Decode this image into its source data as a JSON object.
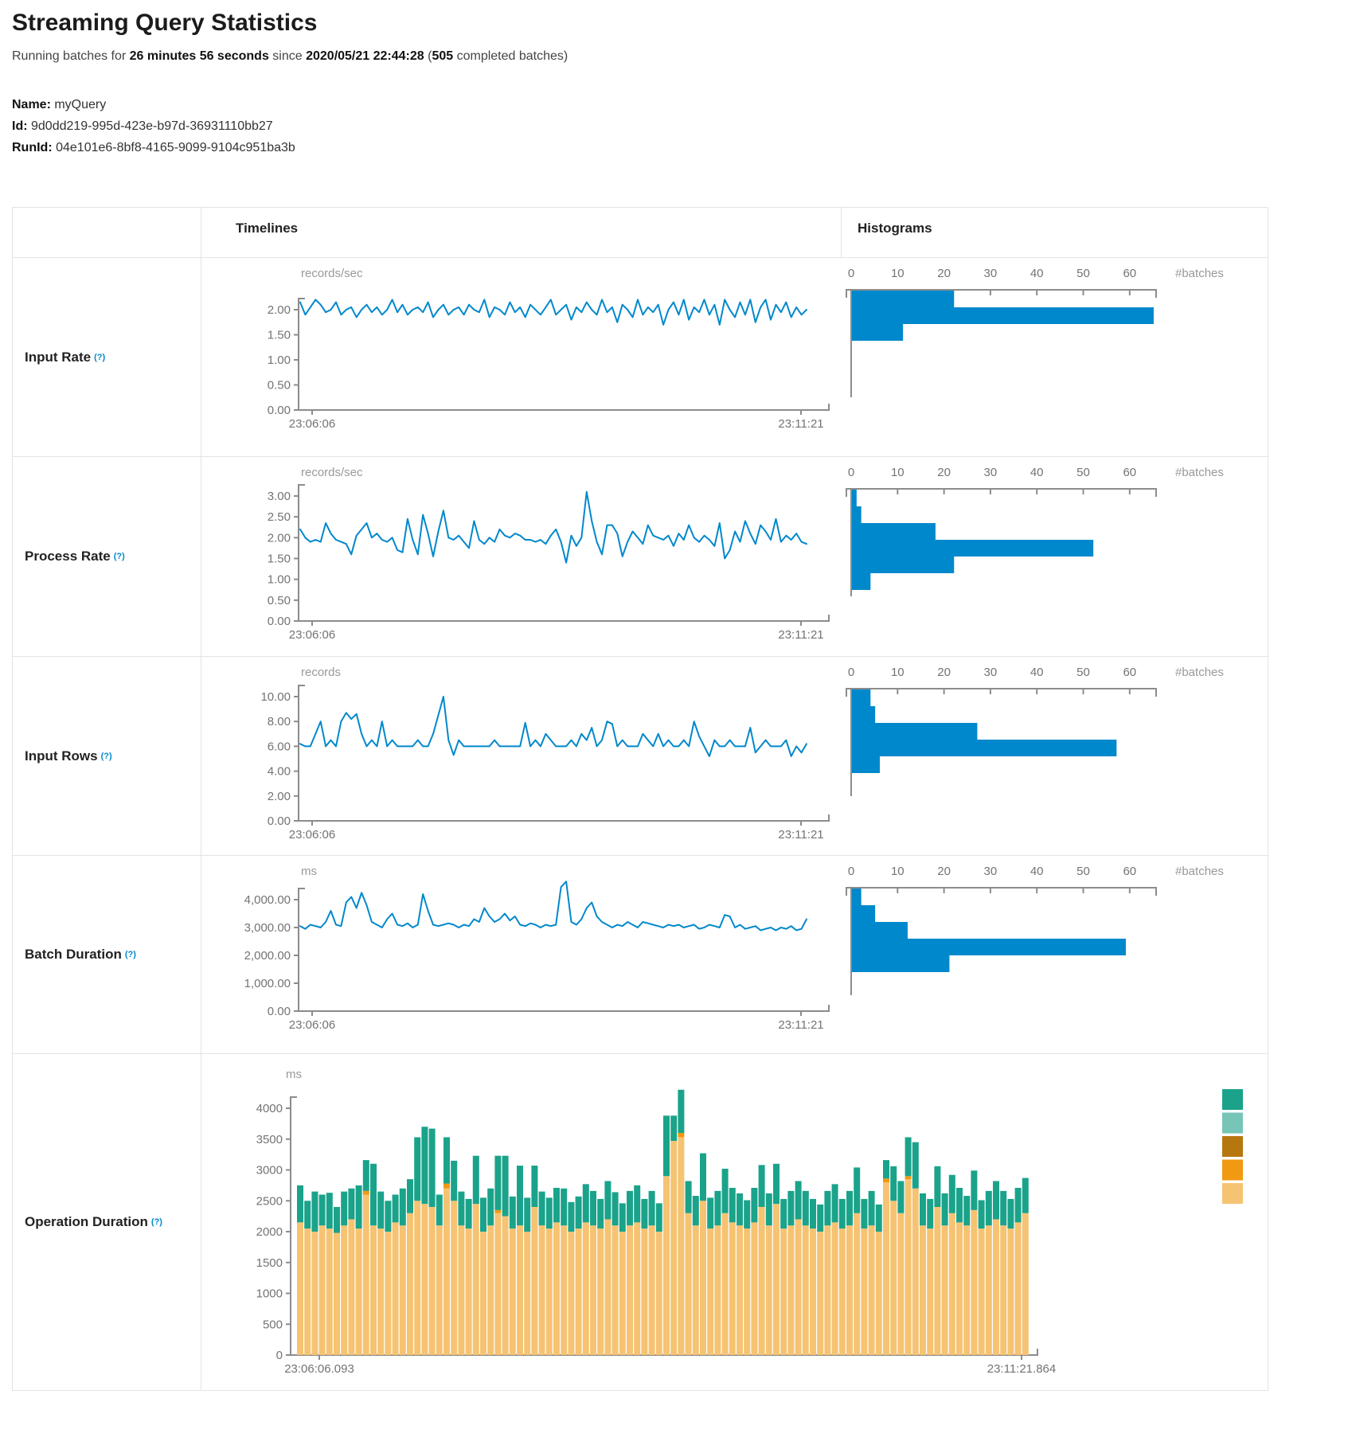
{
  "header": {
    "title": "Streaming Query Statistics",
    "running_prefix": "Running batches for ",
    "running_duration": "26 minutes 56 seconds",
    "running_since": " since ",
    "start_time": "2020/05/21 22:44:28",
    "paren_open": " (",
    "completed_batches": "505",
    "paren_close": " completed batches)"
  },
  "query_info": {
    "name_label": "Name:",
    "name_value": " myQuery",
    "id_label": "Id:",
    "id_value": " 9d0dd219-995d-423e-b97d-36931110bb27",
    "run_id_label": "RunId:",
    "run_id_value": " 04e101e6-8bf8-4165-9099-9104c951ba3b"
  },
  "table": {
    "timelines_header": "Timelines",
    "histograms_header": "Histograms",
    "rows": [
      {
        "label": "Input Rate",
        "help": "(?)"
      },
      {
        "label": "Process Rate",
        "help": "(?)"
      },
      {
        "label": "Input Rows",
        "help": "(?)"
      },
      {
        "label": "Batch Duration",
        "help": "(?)"
      },
      {
        "label": "Operation Duration",
        "help": "(?)"
      }
    ]
  },
  "colors": {
    "series_blue": "#0088CC",
    "axis_gray": "#8c8c8c",
    "tick_text": "#737373",
    "unit_text": "#999999"
  },
  "chart_data": [
    {
      "id": "input_rate_timeline",
      "type": "line",
      "unit": "records/sec",
      "x_start_label": "23:06:06",
      "x_end_label": "23:11:21",
      "ytick_values": [
        2,
        1.5,
        1,
        0.5,
        0
      ],
      "ytick_labels": [
        "2.00",
        "1.50",
        "1.00",
        "0.50",
        "0.00"
      ],
      "ylim": [
        0,
        2.3
      ],
      "values": [
        2.15,
        1.9,
        2.05,
        2.2,
        2.1,
        1.95,
        2.0,
        2.15,
        1.9,
        2.0,
        2.05,
        1.85,
        2.0,
        2.1,
        1.95,
        2.05,
        1.9,
        2.0,
        2.2,
        1.95,
        2.1,
        1.9,
        2.0,
        2.05,
        1.95,
        2.15,
        1.85,
        2.0,
        2.1,
        1.9,
        2.0,
        2.05,
        1.9,
        2.1,
        2.0,
        1.95,
        2.2,
        1.85,
        2.05,
        2.0,
        1.9,
        2.15,
        1.95,
        2.05,
        1.85,
        2.1,
        2.0,
        1.9,
        2.05,
        2.2,
        1.9,
        2.0,
        2.1,
        1.8,
        2.05,
        1.95,
        2.15,
        2.0,
        1.9,
        2.2,
        1.95,
        2.05,
        1.75,
        2.1,
        2.0,
        1.85,
        2.2,
        1.9,
        2.05,
        1.95,
        2.1,
        1.7,
        2.0,
        2.15,
        1.9,
        2.2,
        1.8,
        2.05,
        1.95,
        2.2,
        1.9,
        2.1,
        1.7,
        2.2,
        2.0,
        1.85,
        2.15,
        1.9,
        2.2,
        1.75,
        2.05,
        2.2,
        1.8,
        2.1,
        1.95,
        2.15,
        1.85,
        2.05,
        1.9,
        2.0
      ]
    },
    {
      "id": "input_rate_histogram",
      "type": "hbar",
      "side_label": "#batches",
      "xtick_values": [
        0,
        10,
        20,
        30,
        40,
        50,
        60
      ],
      "values": [
        22,
        65,
        11
      ]
    },
    {
      "id": "process_rate_timeline",
      "type": "line",
      "unit": "records/sec",
      "x_start_label": "23:06:06",
      "x_end_label": "23:11:21",
      "ytick_values": [
        3,
        2.5,
        2,
        1.5,
        1,
        0.5,
        0
      ],
      "ytick_labels": [
        "3.00",
        "2.50",
        "2.00",
        "1.50",
        "1.00",
        "0.50",
        "0.00"
      ],
      "ylim": [
        0,
        3.2
      ],
      "values": [
        2.2,
        2.0,
        1.9,
        1.95,
        1.9,
        2.35,
        2.1,
        1.95,
        1.9,
        1.85,
        1.6,
        2.05,
        2.2,
        2.35,
        2.0,
        2.1,
        1.95,
        1.9,
        2.0,
        1.7,
        1.65,
        2.45,
        1.95,
        1.6,
        2.55,
        2.1,
        1.55,
        2.15,
        2.65,
        2.0,
        1.95,
        2.05,
        1.9,
        1.75,
        2.4,
        1.95,
        1.85,
        2.0,
        1.9,
        2.2,
        2.05,
        2.0,
        2.1,
        2.05,
        1.95,
        1.95,
        1.9,
        1.95,
        1.85,
        2.05,
        2.2,
        1.9,
        1.4,
        2.05,
        1.8,
        2.0,
        3.1,
        2.4,
        1.9,
        1.6,
        2.3,
        2.3,
        2.1,
        1.55,
        1.9,
        2.15,
        2.0,
        1.85,
        2.3,
        2.05,
        2.0,
        1.95,
        2.05,
        1.8,
        2.1,
        1.95,
        2.3,
        2.0,
        1.9,
        2.05,
        1.95,
        1.8,
        2.35,
        1.5,
        1.7,
        2.15,
        1.9,
        2.4,
        2.1,
        1.85,
        2.3,
        2.15,
        1.95,
        2.45,
        1.9,
        2.05,
        1.95,
        2.1,
        1.9,
        1.85
      ]
    },
    {
      "id": "process_rate_histogram",
      "type": "hbar",
      "side_label": "#batches",
      "xtick_values": [
        0,
        10,
        20,
        30,
        40,
        50,
        60
      ],
      "values": [
        1,
        2,
        18,
        52,
        22,
        4
      ]
    },
    {
      "id": "input_rows_timeline",
      "type": "line",
      "unit": "records",
      "x_start_label": "23:06:06",
      "x_end_label": "23:11:21",
      "ytick_values": [
        10,
        8,
        6,
        4,
        2,
        0
      ],
      "ytick_labels": [
        "10.00",
        "8.00",
        "6.00",
        "4.00",
        "2.00",
        "0.00"
      ],
      "ylim": [
        0,
        10.5
      ],
      "values": [
        6.2,
        6,
        6,
        7,
        8,
        6,
        6.5,
        6,
        8,
        8.7,
        8.2,
        8.6,
        7,
        6,
        6.5,
        6,
        8,
        6,
        6.5,
        6,
        6,
        6,
        6,
        6.5,
        6,
        6,
        7,
        8.5,
        10,
        6.5,
        5.3,
        6.5,
        6,
        6,
        6,
        6,
        6,
        6,
        6.5,
        6,
        6,
        6,
        6,
        6,
        7.9,
        6,
        6.5,
        6,
        7,
        6.5,
        6,
        6,
        6,
        6.5,
        6,
        7,
        6.5,
        7.5,
        6,
        6.5,
        8,
        7.8,
        6,
        6.5,
        6,
        6,
        6,
        7,
        6.5,
        6,
        7,
        6,
        6.5,
        6,
        6,
        6.5,
        6,
        8,
        6.8,
        6,
        5.2,
        6.5,
        6,
        6,
        6.5,
        6,
        6,
        6,
        7.5,
        5.5,
        6,
        6.5,
        6,
        6,
        6,
        6.5,
        5.2,
        6,
        5.5,
        6.2
      ]
    },
    {
      "id": "input_rows_histogram",
      "type": "hbar",
      "side_label": "#batches",
      "xtick_values": [
        0,
        10,
        20,
        30,
        40,
        50,
        60
      ],
      "values": [
        4,
        5,
        27,
        57,
        6
      ]
    },
    {
      "id": "batch_duration_timeline",
      "type": "line",
      "unit": "ms",
      "x_start_label": "23:06:06",
      "x_end_label": "23:11:21",
      "ytick_values": [
        4000,
        3000,
        2000,
        1000,
        0
      ],
      "ytick_labels": [
        "4,000.00",
        "3,000.00",
        "2,000.00",
        "1,000.00",
        "0.00"
      ],
      "ylim": [
        0,
        5000
      ],
      "values": [
        3050,
        2950,
        3100,
        3050,
        3000,
        3200,
        3600,
        3100,
        3050,
        3900,
        4100,
        3700,
        4250,
        3800,
        3200,
        3100,
        3000,
        3300,
        3500,
        3100,
        3050,
        3150,
        3000,
        3100,
        4200,
        3600,
        3100,
        3050,
        3100,
        3150,
        3100,
        3000,
        3100,
        3050,
        3300,
        3200,
        3700,
        3400,
        3200,
        3300,
        3500,
        3250,
        3400,
        3100,
        3050,
        3150,
        3100,
        3000,
        3100,
        3050,
        3100,
        4450,
        4650,
        3200,
        3100,
        3300,
        3700,
        3900,
        3400,
        3200,
        3100,
        3000,
        3100,
        3050,
        3200,
        3100,
        3000,
        3200,
        3150,
        3100,
        3050,
        3000,
        3100,
        3050,
        3100,
        3000,
        3050,
        3100,
        2950,
        3000,
        3100,
        3050,
        3000,
        3450,
        3400,
        3000,
        3100,
        2950,
        3000,
        3050,
        2900,
        2950,
        3000,
        2900,
        3000,
        2950,
        3050,
        2900,
        2950,
        3300
      ]
    },
    {
      "id": "batch_duration_histogram",
      "type": "hbar",
      "side_label": "#batches",
      "xtick_values": [
        0,
        10,
        20,
        30,
        40,
        50,
        60
      ],
      "values": [
        2,
        5,
        12,
        59,
        21
      ]
    },
    {
      "id": "operation_duration",
      "type": "stacked_bar",
      "unit": "ms",
      "x_start_label": "23:06:06.093",
      "x_end_label": "23:11:21.864",
      "ytick_values": [
        4000,
        3500,
        3000,
        2500,
        2000,
        1500,
        1000,
        500,
        0
      ],
      "ytick_labels": [
        "4000",
        "3500",
        "3000",
        "2500",
        "2000",
        "1500",
        "1000",
        "500",
        "0"
      ],
      "ylim": [
        0,
        4400
      ],
      "legend": [
        {
          "name": "teal",
          "color": "#1AA38A"
        },
        {
          "name": "light-teal",
          "color": "#76C5B6"
        },
        {
          "name": "dark-gold",
          "color": "#B7770F"
        },
        {
          "name": "orange",
          "color": "#F09911"
        },
        {
          "name": "tan",
          "color": "#F6C372"
        }
      ],
      "series": [
        {
          "name": "bottom-tan",
          "color": "#F6C372",
          "values": [
            2150,
            2050,
            2000,
            2100,
            2050,
            1980,
            2100,
            2200,
            2050,
            2600,
            2100,
            2050,
            2000,
            2150,
            2100,
            2300,
            2500,
            2450,
            2400,
            2100,
            2700,
            2500,
            2100,
            2050,
            2450,
            2000,
            2100,
            2300,
            2250,
            2050,
            2100,
            2000,
            2400,
            2100,
            2050,
            2150,
            2100,
            2000,
            2050,
            2150,
            2100,
            2050,
            2200,
            2100,
            2000,
            2100,
            2150,
            2050,
            2100,
            2000,
            2900,
            3470,
            3530,
            2300,
            2100,
            2500,
            2050,
            2100,
            2300,
            2150,
            2100,
            2050,
            2150,
            2400,
            2100,
            2450,
            2050,
            2100,
            2200,
            2100,
            2050,
            2000,
            2100,
            2150,
            2050,
            2100,
            2300,
            2050,
            2100,
            2000,
            2800,
            2500,
            2300,
            2850,
            2700,
            2100,
            2050,
            2400,
            2100,
            2300,
            2150,
            2100,
            2350,
            2050,
            2100,
            2200,
            2100,
            2050,
            2150,
            2300
          ]
        },
        {
          "name": "mid-orange",
          "color": "#F09911",
          "values": [
            0,
            0,
            0,
            0,
            0,
            0,
            0,
            0,
            0,
            60,
            0,
            0,
            0,
            0,
            0,
            0,
            0,
            0,
            0,
            0,
            80,
            0,
            0,
            0,
            0,
            0,
            0,
            50,
            0,
            0,
            0,
            0,
            0,
            0,
            0,
            0,
            0,
            0,
            0,
            0,
            0,
            0,
            0,
            0,
            0,
            0,
            0,
            0,
            0,
            0,
            0,
            0,
            70,
            0,
            0,
            0,
            0,
            0,
            0,
            0,
            0,
            0,
            0,
            0,
            0,
            0,
            0,
            0,
            0,
            0,
            0,
            0,
            0,
            0,
            0,
            0,
            0,
            0,
            0,
            0,
            60,
            0,
            0,
            50,
            0,
            0,
            0,
            0,
            0,
            0,
            0,
            0,
            0,
            0,
            0,
            0,
            0,
            0,
            0,
            0
          ]
        },
        {
          "name": "top-teal",
          "color": "#1AA38A",
          "values": [
            600,
            450,
            650,
            500,
            580,
            420,
            550,
            500,
            700,
            500,
            1000,
            600,
            500,
            450,
            600,
            550,
            1030,
            1250,
            1270,
            500,
            750,
            650,
            550,
            480,
            780,
            550,
            600,
            880,
            980,
            520,
            970,
            550,
            670,
            550,
            500,
            560,
            600,
            480,
            520,
            620,
            560,
            480,
            620,
            540,
            460,
            560,
            600,
            480,
            560,
            460,
            980,
            410,
            700,
            520,
            480,
            770,
            500,
            560,
            720,
            560,
            520,
            460,
            560,
            680,
            520,
            650,
            480,
            560,
            620,
            560,
            480,
            440,
            560,
            620,
            480,
            560,
            740,
            480,
            560,
            440,
            300,
            560,
            520,
            630,
            750,
            520,
            480,
            660,
            520,
            620,
            560,
            480,
            640,
            460,
            560,
            620,
            560,
            480,
            560,
            570
          ]
        }
      ]
    }
  ]
}
